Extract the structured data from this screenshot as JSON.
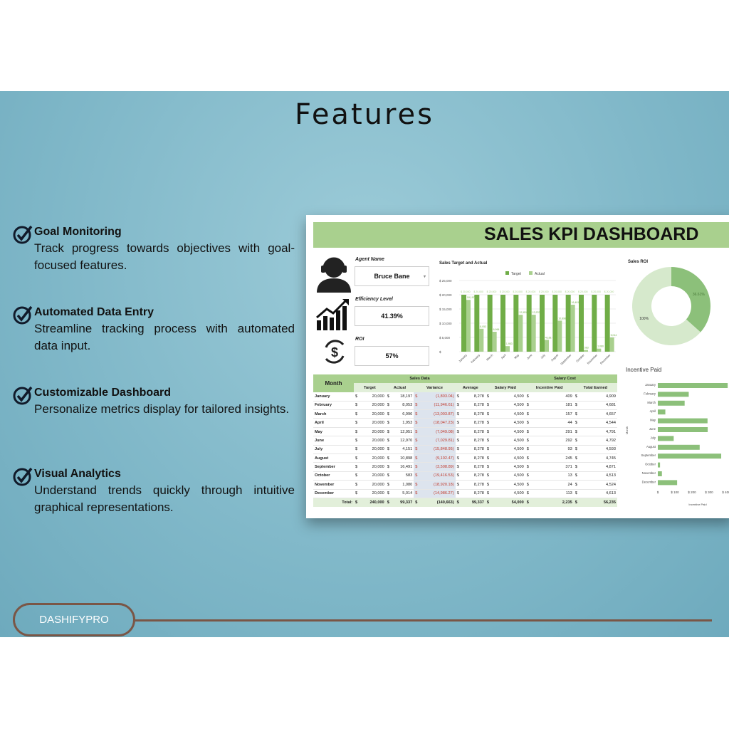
{
  "page": {
    "title": "Features",
    "brand": "DASHIFYPRO"
  },
  "features": [
    {
      "title": "Goal Monitoring",
      "desc": "Track progress towards objectives with goal-focused features."
    },
    {
      "title": "Automated Data Entry",
      "desc": "Streamline tracking process with automated data input."
    },
    {
      "title": "Customizable Dashboard",
      "desc": "Personalize metrics display for tailored insights."
    },
    {
      "title": "Visual Analytics",
      "desc": "Understand trends quickly through intuitive graphical representations."
    }
  ],
  "dashboard": {
    "title": "SALES KPI DASHBOARD",
    "agent_label": "Agent Name",
    "agent": "Bruce Bane",
    "efficiency_label": "Efficiency Level",
    "efficiency": "41.39%",
    "roi_label": "ROI",
    "roi": "57%",
    "accent": "#70ad47",
    "light": "#a9d08e"
  },
  "chart_data": [
    {
      "type": "bar",
      "title": "Sales Target and Actual",
      "categories": [
        "January",
        "February",
        "March",
        "April",
        "May",
        "June",
        "July",
        "August",
        "September",
        "October",
        "November",
        "December"
      ],
      "series": [
        {
          "name": "Target",
          "values": [
            20000,
            20000,
            20000,
            20000,
            20000,
            20000,
            20000,
            20000,
            20000,
            20000,
            20000,
            20000
          ]
        },
        {
          "name": "Actual",
          "values": [
            18197,
            8053,
            6996,
            1953,
            12951,
            12970,
            4151,
            10898,
            16491,
            583,
            1080,
            5014
          ]
        }
      ],
      "yticks": [
        "$ 25,000",
        "$ 20,000",
        "$ 15,000",
        "$ 10,000",
        "$ 5,000",
        "$"
      ],
      "ylim": [
        0,
        25000
      ],
      "legend": "top"
    },
    {
      "type": "pie",
      "title": "Sales ROI",
      "slices": [
        {
          "label": "36.61%",
          "value": 36.61
        },
        {
          "label": "100%",
          "value": 63.39
        }
      ]
    },
    {
      "type": "bar",
      "title": "Incentive Paid",
      "orientation": "horizontal",
      "xlabel": "Incentive Paid",
      "ylabel": "Month",
      "categories": [
        "January",
        "February",
        "March",
        "April",
        "May",
        "June",
        "July",
        "August",
        "September",
        "October",
        "November",
        "December"
      ],
      "values": [
        409,
        181,
        157,
        44,
        291,
        292,
        93,
        245,
        371,
        13,
        24,
        113
      ],
      "xticks": [
        "$",
        "$ 100",
        "$ 200",
        "$ 300",
        "$ 400"
      ],
      "xlim": [
        0,
        400
      ]
    }
  ],
  "table": {
    "group_headers": [
      "Sales Data",
      "Salary Cost"
    ],
    "headers": [
      "Month",
      "Target",
      "Actual",
      "Variance",
      "Average",
      "Salary Paid",
      "Incentive Paid",
      "Total Earned"
    ],
    "rows": [
      [
        "January",
        "20,000",
        "18,197",
        "(1,803.04)",
        "8,278",
        "4,500",
        "409",
        "4,909"
      ],
      [
        "February",
        "20,000",
        "8,053",
        "(11,946.61)",
        "8,278",
        "4,500",
        "181",
        "4,681"
      ],
      [
        "March",
        "20,000",
        "6,996",
        "(13,003.87)",
        "8,278",
        "4,500",
        "157",
        "4,657"
      ],
      [
        "April",
        "20,000",
        "1,953",
        "(18,047.23)",
        "8,278",
        "4,500",
        "44",
        "4,544"
      ],
      [
        "May",
        "20,000",
        "12,951",
        "(7,049.08)",
        "8,278",
        "4,500",
        "291",
        "4,791"
      ],
      [
        "June",
        "20,000",
        "12,970",
        "(7,029.81)",
        "8,278",
        "4,500",
        "292",
        "4,792"
      ],
      [
        "July",
        "20,000",
        "4,151",
        "(15,848.95)",
        "8,278",
        "4,500",
        "93",
        "4,593"
      ],
      [
        "August",
        "20,000",
        "10,898",
        "(9,102.47)",
        "8,278",
        "4,500",
        "245",
        "4,745"
      ],
      [
        "September",
        "20,000",
        "16,491",
        "(3,508.89)",
        "8,278",
        "4,500",
        "371",
        "4,871"
      ],
      [
        "October",
        "20,000",
        "583",
        "(19,416.53)",
        "8,278",
        "4,500",
        "13",
        "4,513"
      ],
      [
        "November",
        "20,000",
        "1,080",
        "(18,920.18)",
        "8,278",
        "4,500",
        "24",
        "4,524"
      ],
      [
        "December",
        "20,000",
        "5,014",
        "(14,986.27)",
        "8,278",
        "4,500",
        "113",
        "4,613"
      ]
    ],
    "total": [
      "Total:",
      "240,000",
      "99,337",
      "(140,663)",
      "99,337",
      "54,000",
      "2,235",
      "56,235"
    ],
    "currency": "$"
  }
}
